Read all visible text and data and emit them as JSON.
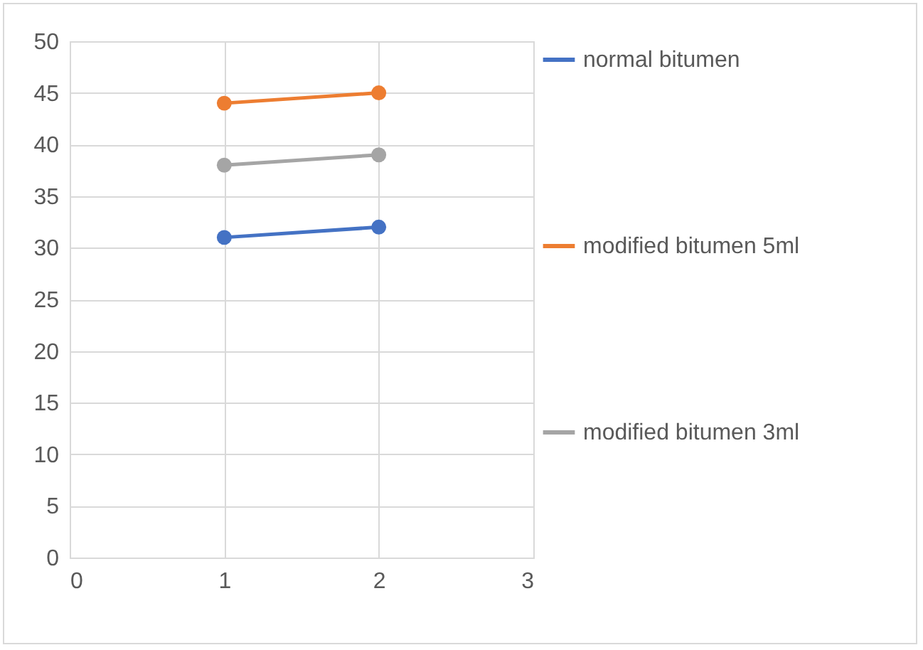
{
  "chart_data": {
    "type": "line",
    "x": [
      1,
      2
    ],
    "xlim": [
      0,
      3
    ],
    "xticks": [
      0,
      1,
      2,
      3
    ],
    "ylim": [
      0,
      50
    ],
    "yticks": [
      0,
      5,
      10,
      15,
      20,
      25,
      30,
      35,
      40,
      45,
      50
    ],
    "grid": true,
    "legend": "right",
    "marker": "circle",
    "series": [
      {
        "name": "normal bitumen",
        "color": "#4472c4",
        "values": [
          31,
          32
        ]
      },
      {
        "name": "modified bitumen 5ml",
        "color": "#ed7d31",
        "values": [
          44,
          45
        ]
      },
      {
        "name": "modified bitumen 3ml",
        "color": "#a5a5a5",
        "values": [
          38,
          39
        ]
      }
    ]
  }
}
